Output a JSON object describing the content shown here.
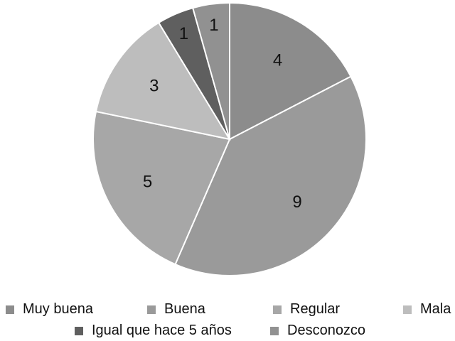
{
  "chart_data": {
    "type": "pie",
    "title": "",
    "categories": [
      "Muy buena",
      "Buena",
      "Regular",
      "Mala",
      "Igual que hace 5 años",
      "Desconozco"
    ],
    "values": [
      4,
      9,
      5,
      3,
      1,
      1
    ],
    "colors": [
      "#8c8c8c",
      "#9a9a9a",
      "#a7a7a7",
      "#bdbdbd",
      "#5f5f5f",
      "#919191"
    ],
    "slice_border_color": "#ffffff",
    "start_angle": "12 o'clock",
    "direction": "clockwise",
    "data_labels": true,
    "legend_position": "bottom"
  }
}
